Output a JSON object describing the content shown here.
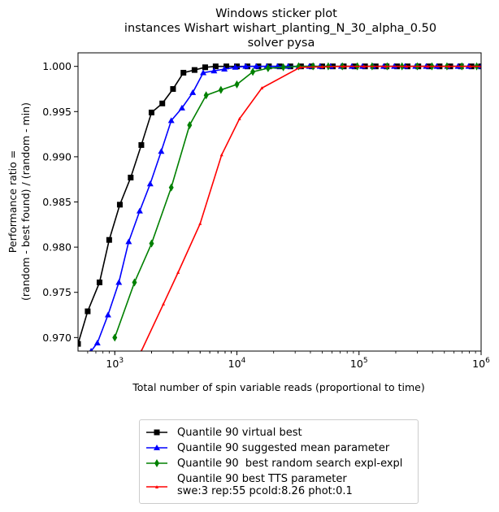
{
  "chart_data": {
    "type": "line",
    "title": [
      "Windows sticker plot",
      "instances Wishart wishart_planting_N_30_alpha_0.50",
      "solver pysa"
    ],
    "xlabel": "Total number of spin variable reads (proportional to time)",
    "ylabel": [
      "Performance ratio =",
      "(random - best found) / (random - min)"
    ],
    "xscale": "log",
    "xlim": [
      500,
      1000000
    ],
    "ylim": [
      0.9685,
      1.0015
    ],
    "x_tick_labels": [
      "10^3",
      "10^4",
      "10^5",
      "10^6"
    ],
    "x_tick_values": [
      1000,
      10000,
      100000,
      1000000
    ],
    "y_ticks": [
      0.97,
      0.975,
      0.98,
      0.985,
      0.99,
      0.995,
      1.0
    ],
    "y_tick_labels": [
      "0.970",
      "0.975",
      "0.980",
      "0.985",
      "0.990",
      "0.995",
      "1.000"
    ],
    "grid": false,
    "legend_position": "below",
    "series": [
      {
        "name": "Quantile 90 virtual best",
        "color": "#000000",
        "marker": "square",
        "x": [
          500,
          600,
          750,
          900,
          1100,
          1350,
          1650,
          2000,
          2450,
          3000,
          3650,
          4500,
          5500,
          6700,
          8200,
          10000,
          12200,
          15000,
          18300,
          22400,
          27400,
          33500,
          41000,
          50000,
          61000,
          75000,
          92000,
          112000,
          137000,
          168000,
          205000,
          250000,
          306000,
          374000,
          457000,
          559000,
          683000,
          835000,
          1000000
        ],
        "y": [
          0.9693,
          0.9729,
          0.9761,
          0.9808,
          0.9847,
          0.9877,
          0.9913,
          0.9949,
          0.9959,
          0.9975,
          0.9993,
          0.9996,
          0.9999,
          1.0,
          1.0,
          1.0,
          1.0,
          1.0,
          1.0,
          1.0,
          1.0,
          1.0,
          1.0,
          1.0,
          1.0,
          1.0,
          1.0,
          1.0,
          1.0,
          1.0,
          1.0,
          1.0,
          1.0,
          1.0,
          1.0,
          1.0,
          1.0,
          1.0,
          1.0
        ]
      },
      {
        "name": "Quantile 90 suggested mean parameter",
        "color": "#0000ff",
        "marker": "triangle",
        "x": [
          640,
          720,
          880,
          1080,
          1300,
          1600,
          1950,
          2400,
          2900,
          3550,
          4350,
          5300,
          6500,
          7900,
          9700,
          11800,
          14400,
          17600,
          21500,
          26300,
          32100,
          39200,
          47900,
          58500,
          71500,
          87300,
          106700,
          130300,
          159200,
          194500,
          237600,
          290200,
          354600,
          433100,
          529100,
          646400,
          789600,
          1000000
        ],
        "y": [
          0.9685,
          0.9694,
          0.9725,
          0.9761,
          0.9806,
          0.984,
          0.987,
          0.9906,
          0.994,
          0.9954,
          0.9971,
          0.9993,
          0.9995,
          0.9997,
          0.9999,
          1.0,
          1.0,
          1.0,
          1.0,
          1.0,
          1.0,
          1.0,
          1.0,
          1.0,
          1.0,
          1.0,
          1.0,
          1.0,
          1.0,
          1.0,
          1.0,
          1.0,
          1.0,
          1.0,
          1.0,
          1.0,
          1.0,
          1.0
        ]
      },
      {
        "name": "Quantile 90  best random search expl-expl",
        "color": "#008000",
        "marker": "diamond",
        "x": [
          1000,
          1450,
          2000,
          2900,
          4100,
          5600,
          7400,
          10000,
          13500,
          18000,
          24000,
          32000,
          42000,
          56000,
          73000,
          97000,
          128000,
          170000,
          225000,
          300000,
          396000,
          525000,
          695000,
          920000
        ],
        "y": [
          0.97,
          0.9761,
          0.9804,
          0.9866,
          0.9935,
          0.9968,
          0.9974,
          0.998,
          0.9994,
          0.9998,
          0.9999,
          1.0,
          1.0,
          1.0,
          1.0,
          1.0,
          1.0,
          1.0,
          1.0,
          1.0,
          1.0,
          1.0,
          1.0,
          1.0
        ]
      },
      {
        "name": "Quantile 90 best TTS parameter\nswe:3 rep:55 pcold:8.26 phot:0.1",
        "color": "#ff0000",
        "marker": "small-triangle",
        "x": [
          1650,
          2500,
          3300,
          5000,
          7500,
          10500,
          16000,
          33000,
          50000,
          75000,
          110000,
          165000,
          245000,
          365000,
          545000,
          815000,
          1000000
        ],
        "y": [
          0.9685,
          0.9737,
          0.9772,
          0.9826,
          0.9902,
          0.9942,
          0.9976,
          0.9999,
          0.99995,
          1.0,
          1.0,
          1.0,
          1.0,
          1.0,
          1.0,
          1.0,
          1.0
        ]
      }
    ]
  }
}
